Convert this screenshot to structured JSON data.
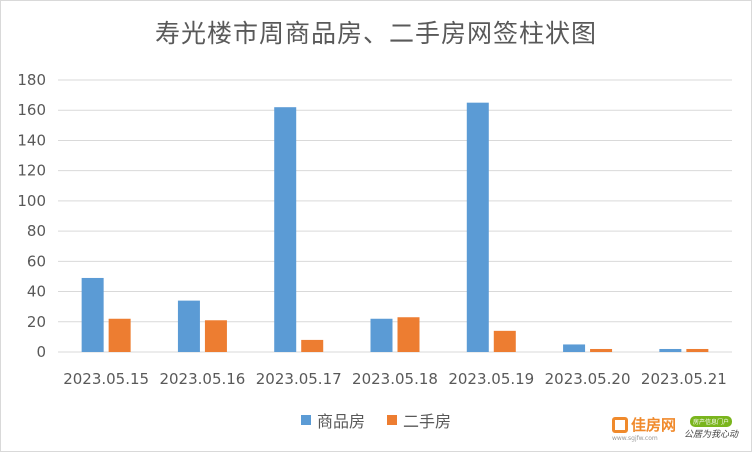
{
  "chart_data": {
    "type": "bar",
    "title": "寿光楼市周商品房、二手房网签柱状图",
    "categories": [
      "2023.05.15",
      "2023.05.16",
      "2023.05.17",
      "2023.05.18",
      "2023.05.19",
      "2023.05.20",
      "2023.05.21"
    ],
    "series": [
      {
        "name": "商品房",
        "color": "#5b9bd5",
        "values": [
          49,
          34,
          162,
          22,
          165,
          5,
          2
        ]
      },
      {
        "name": "二手房",
        "color": "#ed7d31",
        "values": [
          22,
          21,
          8,
          23,
          14,
          2,
          2
        ]
      }
    ],
    "yticks": [
      0,
      20,
      40,
      60,
      80,
      100,
      120,
      140,
      160,
      180
    ],
    "ylim": [
      0,
      180
    ],
    "grid": true,
    "legend_position": "bottom"
  },
  "watermark": {
    "logo_text": "佳房网",
    "logo_sub": "www.sgjfw.com",
    "badge": "房产信息门户",
    "slogan": "公居为我心动"
  }
}
